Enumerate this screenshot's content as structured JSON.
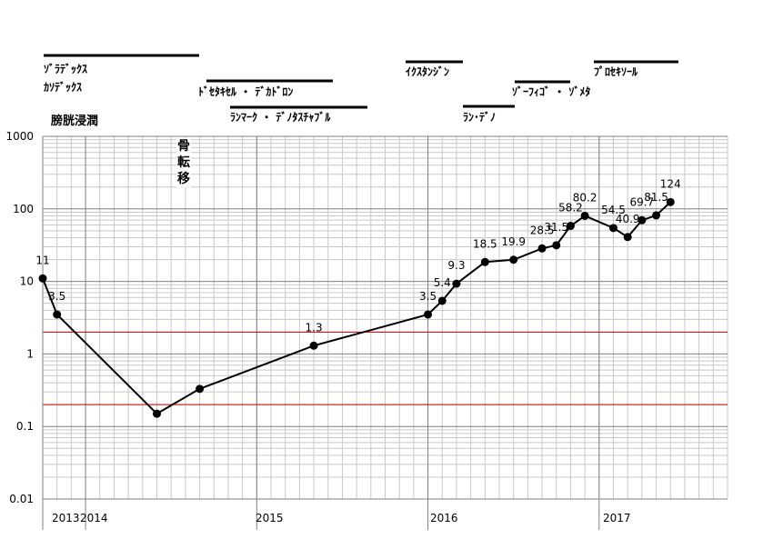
{
  "treatments": [
    {
      "name": "treat-1",
      "text": "ｿﾞﾗﾃﾞｯｸｽ",
      "bar": true
    },
    {
      "name": "treat-2",
      "text": "ｶｿﾃﾞｯｸｽ",
      "bar": false
    },
    {
      "name": "treat-3",
      "text": "ﾄﾞｾﾀｷｾﾙ ・ ﾃﾞｶﾄﾞﾛﾝ",
      "bar": true
    },
    {
      "name": "treat-4",
      "text": "ﾗﾝﾏｰｸ ・ ﾃﾞﾉﾀｽﾁｬﾌﾞﾙ",
      "bar": true
    },
    {
      "name": "treat-5",
      "text": "ｲｸｽﾀﾝｼﾞﾝ",
      "bar": true
    },
    {
      "name": "treat-6",
      "text": "ﾗﾝ･ﾃﾞﾉ",
      "bar": true
    },
    {
      "name": "treat-7",
      "text": "ｿﾞｰﾌｨｺﾞ ・ ｿﾞﾒﾀ",
      "bar": true
    },
    {
      "name": "treat-8",
      "text": "ﾌﾟﾛｾｷｿｰﾙ",
      "bar": true
    }
  ],
  "events": {
    "bladder_invasion": "膀胱浸潤",
    "bone_metastasis": "骨転移"
  },
  "chart_data": {
    "type": "line",
    "scale": "log",
    "ylim": [
      0.01,
      1000
    ],
    "y_ticks": [
      "0.01",
      "0.1",
      "1",
      "10",
      "100",
      "1000"
    ],
    "x_ticks": [
      "2013",
      "2014",
      "2015",
      "2016",
      "2017"
    ],
    "reference_lines": [
      {
        "value": 2,
        "color": "#cc0000"
      },
      {
        "value": 0.2,
        "color": "#cc0000"
      }
    ],
    "series": [
      {
        "color": "#000000",
        "points": [
          {
            "x": "2013-10",
            "y": 11,
            "label": "11"
          },
          {
            "x": "2013-11",
            "y": 3.5,
            "label": "3.5"
          },
          {
            "x": "2014-06",
            "y": 0.15,
            "label": ""
          },
          {
            "x": "2014-09",
            "y": 0.33,
            "label": ""
          },
          {
            "x": "2015-05",
            "y": 1.3,
            "label": "1.3"
          },
          {
            "x": "2016-01",
            "y": 3.5,
            "label": "3.5"
          },
          {
            "x": "2016-02",
            "y": 5.4,
            "label": "5.4"
          },
          {
            "x": "2016-03",
            "y": 9.3,
            "label": "9.3"
          },
          {
            "x": "2016-05",
            "y": 18.5,
            "label": "18.5"
          },
          {
            "x": "2016-07",
            "y": 19.9,
            "label": "19.9"
          },
          {
            "x": "2016-09",
            "y": 28.5,
            "label": "28.5"
          },
          {
            "x": "2016-10",
            "y": 31.5,
            "label": "31.5"
          },
          {
            "x": "2016-11",
            "y": 58.2,
            "label": "58.2"
          },
          {
            "x": "2016-12",
            "y": 80.2,
            "label": "80.2"
          },
          {
            "x": "2017-02",
            "y": 54.5,
            "label": "54.5"
          },
          {
            "x": "2017-03",
            "y": 40.9,
            "label": "40.9"
          },
          {
            "x": "2017-04",
            "y": 69.7,
            "label": "69.7"
          },
          {
            "x": "2017-05",
            "y": 81.5,
            "label": "81.5"
          },
          {
            "x": "2017-06",
            "y": 124,
            "label": "124"
          }
        ]
      }
    ]
  }
}
